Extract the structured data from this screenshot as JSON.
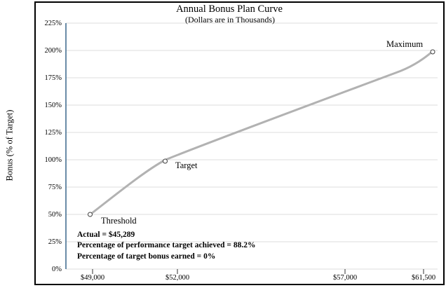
{
  "chart": {
    "title": "Annual Bonus Plan Curve",
    "subtitle": "(Dollars are in Thousands)",
    "y_axis_title": "Bonus (% of Target)",
    "y_tick_labels": [
      "225%",
      "200%",
      "175%",
      "150%",
      "125%",
      "100%",
      "75%",
      "50%",
      "25%",
      "0%"
    ],
    "x_tick_labels": [
      "$49,000",
      "$52,000",
      "$57,000",
      "$61,500"
    ],
    "point_labels": {
      "threshold": "Threshold",
      "target": "Target",
      "maximum": "Maximum"
    },
    "annotation_lines": [
      "Actual = $45,289",
      "Percentage of performance target achieved = 88.2%",
      "Percentage of target bonus earned = 0%"
    ]
  },
  "colors": {
    "curve": "#b2b2b2",
    "axis_line": "#38678a",
    "gridline": "#dcdcdc",
    "frame_border": "#000000",
    "tick": "#333333",
    "marker_stroke": "#404040",
    "marker_fill": "#ffffff",
    "text": "#000000"
  },
  "chart_data": {
    "type": "line",
    "title": "Annual Bonus Plan Curve",
    "subtitle": "(Dollars are in Thousands)",
    "xlabel": "",
    "ylabel": "Bonus (% of Target)",
    "x_tick_labels": [
      "$49,000",
      "$52,000",
      "$57,000",
      "$61,500"
    ],
    "y_tick_labels": [
      "0%",
      "25%",
      "50%",
      "75%",
      "100%",
      "125%",
      "150%",
      "175%",
      "200%",
      "225%"
    ],
    "ylim": [
      0,
      225
    ],
    "y_unit": "percent_of_target",
    "grid": true,
    "legend": false,
    "line_style": "smooth",
    "marker": "open-circle",
    "series": [
      {
        "name": "Annual bonus plan curve",
        "points": [
          {
            "x": 49000,
            "y": 50,
            "label": "Threshold",
            "estimated": false
          },
          {
            "x": 52000,
            "y": 100,
            "label": "Target",
            "estimated": false
          },
          {
            "x": 60000,
            "y": 182,
            "label": null,
            "estimated": true
          },
          {
            "x": 61500,
            "y": 200,
            "label": "Maximum",
            "estimated": false
          }
        ]
      }
    ],
    "annotations": [
      "Actual = $45,289",
      "Percentage of performance target achieved = 88.2%",
      "Percentage of target bonus earned = 0%"
    ]
  }
}
